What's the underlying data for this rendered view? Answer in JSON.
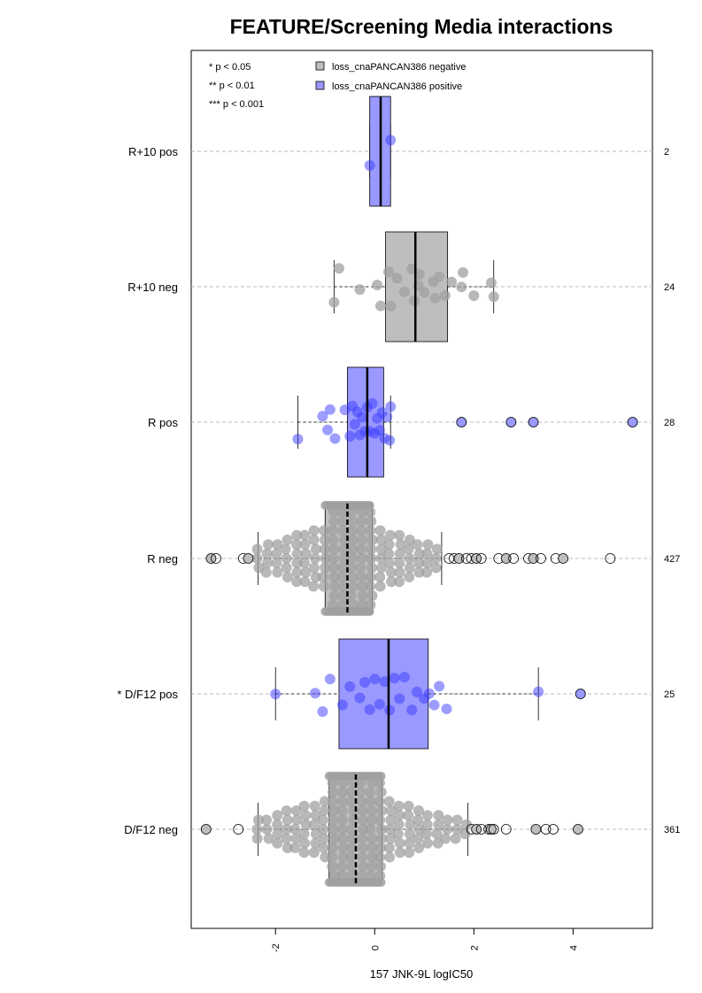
{
  "chart_data": {
    "type": "box",
    "title": "FEATURE/Screening Media interactions",
    "xlabel": "157 JNK-9L logIC50",
    "ylabel": "",
    "xlim": [
      -3.7,
      5.6
    ],
    "x_ticks": [
      -2,
      0,
      2,
      4
    ],
    "x_tick_labels": [
      "-2",
      "0",
      "2",
      "4"
    ],
    "significance_legend": [
      "* p < 0.05",
      "** p < 0.01",
      "*** p < 0.001"
    ],
    "legend": [
      {
        "label": "loss_cnaPANCAN386 negative",
        "color": "#bebebe"
      },
      {
        "label": "loss_cnaPANCAN386 positive",
        "color": "#9999ff"
      }
    ],
    "groups": [
      {
        "label": "R+10 pos",
        "n": "2",
        "status": "positive",
        "q1": -0.1,
        "median": 0.12,
        "q3": 0.32,
        "whisker_low": -0.1,
        "whisker_high": 0.32,
        "points": [
          -0.1,
          0.32
        ],
        "outliers": []
      },
      {
        "label": "R+10 neg",
        "n": "24",
        "status": "negative",
        "q1": 0.22,
        "median": 0.82,
        "q3": 1.47,
        "whisker_low": -0.82,
        "whisker_high": 2.4,
        "points": [
          -0.82,
          -0.72,
          -0.3,
          0.05,
          0.12,
          0.28,
          0.33,
          0.45,
          0.6,
          0.75,
          0.8,
          0.88,
          1.0,
          1.18,
          1.22,
          1.3,
          1.42,
          1.55,
          1.75,
          1.78,
          2.0,
          2.35,
          2.4,
          0.9
        ],
        "outliers": []
      },
      {
        "label": "R pos",
        "n": "28",
        "status": "positive",
        "q1": -0.55,
        "median": -0.15,
        "q3": 0.18,
        "whisker_low": -1.55,
        "whisker_high": 0.32,
        "points": [
          -1.55,
          -1.05,
          -0.95,
          -0.9,
          -0.8,
          -0.6,
          -0.5,
          -0.45,
          -0.4,
          -0.35,
          -0.3,
          -0.25,
          -0.2,
          -0.15,
          -0.1,
          -0.05,
          0.0,
          0.05,
          0.1,
          0.15,
          0.2,
          0.25,
          0.3,
          0.32
        ],
        "outliers": [
          1.75,
          2.75,
          3.2,
          5.2
        ]
      },
      {
        "label": "R neg",
        "n": "427",
        "status": "negative",
        "q1": -1.0,
        "median": -0.55,
        "q3": -0.05,
        "whisker_low": -2.35,
        "whisker_high": 1.35,
        "outliers": [
          -3.3,
          -3.2,
          -2.65,
          -2.55,
          1.5,
          1.6,
          1.7,
          1.85,
          1.95,
          2.05,
          2.15,
          2.5,
          2.65,
          2.8,
          3.1,
          3.2,
          3.35,
          3.65,
          3.8,
          4.75
        ]
      },
      {
        "label": "* D/F12 pos",
        "n": "25",
        "status": "positive",
        "q1": -0.72,
        "median": 0.28,
        "q3": 1.08,
        "whisker_low": -2.0,
        "whisker_high": 3.3,
        "points": [
          -2.0,
          -1.2,
          -1.05,
          -0.9,
          -0.65,
          -0.5,
          -0.3,
          -0.2,
          -0.1,
          0.0,
          0.1,
          0.2,
          0.3,
          0.4,
          0.5,
          0.6,
          0.75,
          0.85,
          1.0,
          1.1,
          1.2,
          1.3,
          1.45,
          3.3
        ],
        "outliers": [
          4.15
        ]
      },
      {
        "label": "D/F12 neg",
        "n": "361",
        "status": "negative",
        "q1": -0.92,
        "median": -0.38,
        "q3": 0.15,
        "whisker_low": -2.35,
        "whisker_high": 1.88,
        "outliers": [
          -3.4,
          -2.75,
          1.95,
          2.05,
          2.15,
          2.3,
          2.35,
          2.4,
          2.65,
          3.25,
          3.45,
          3.6,
          4.1
        ]
      }
    ]
  }
}
